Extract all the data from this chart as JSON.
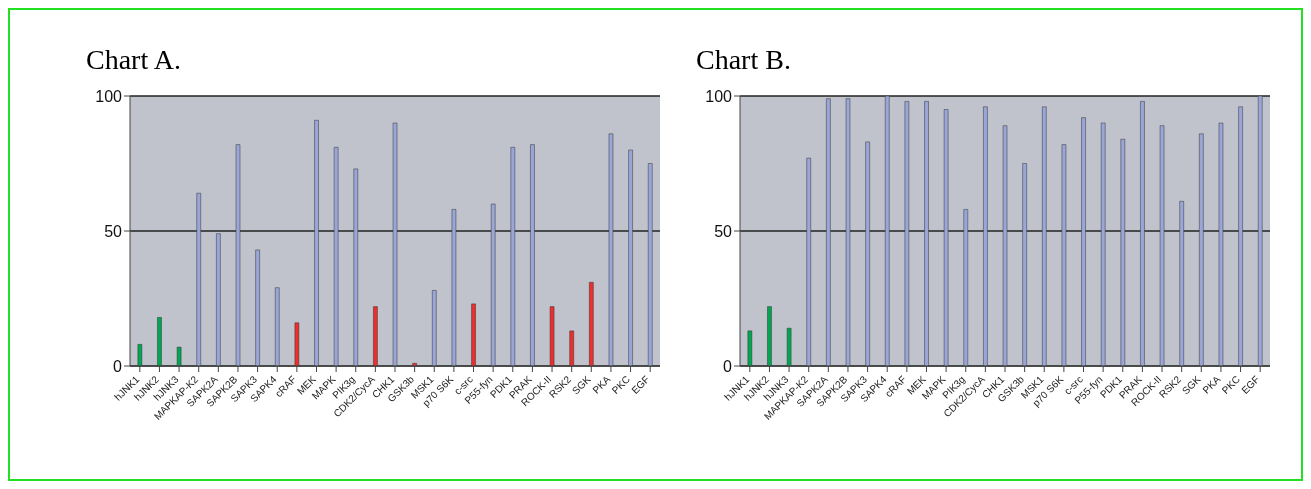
{
  "chart_data": [
    {
      "type": "bar",
      "title": "Chart A.",
      "categories": [
        "hJNK1",
        "hJNK2",
        "hJNK3",
        "MAPKAP-K2",
        "SAPK2A",
        "SAPK2B",
        "SAPK3",
        "SAPK4",
        "cRAF",
        "MEK",
        "MAPK",
        "PIK3g",
        "CDK2/CycA",
        "CHK1",
        "GSK3b",
        "MSK1",
        "p70 S6K",
        "c-src",
        "P55-fyn",
        "PDK1",
        "PRAK",
        "ROCK-II",
        "RSK2",
        "SGK",
        "PKA",
        "PKC",
        "EGF"
      ],
      "values": [
        8,
        18,
        7,
        64,
        49,
        82,
        43,
        29,
        16,
        91,
        81,
        73,
        22,
        90,
        1,
        28,
        58,
        23,
        60,
        81,
        82,
        22,
        13,
        31,
        86,
        80,
        75
      ],
      "colors": [
        "#00a651",
        "#00a651",
        "#00a651",
        "#9ba6d8",
        "#9ba6d8",
        "#9ba6d8",
        "#9ba6d8",
        "#9ba6d8",
        "#ee2d2d",
        "#9ba6d8",
        "#9ba6d8",
        "#9ba6d8",
        "#ee2d2d",
        "#9ba6d8",
        "#ee2d2d",
        "#9ba6d8",
        "#9ba6d8",
        "#ee2d2d",
        "#9ba6d8",
        "#9ba6d8",
        "#9ba6d8",
        "#ee2d2d",
        "#ee2d2d",
        "#ee2d2d",
        "#9ba6d8",
        "#9ba6d8",
        "#9ba6d8"
      ],
      "ylim": [
        0,
        100
      ],
      "yticks": [
        0,
        50,
        100
      ],
      "grid": "y",
      "legend": false
    },
    {
      "type": "bar",
      "title": "Chart B.",
      "categories": [
        "hJNK1",
        "hJNK2",
        "hJNK3",
        "MAPKAP-K2",
        "SAPK2A",
        "SAPK2B",
        "SAPK3",
        "SAPK4",
        "cRAF",
        "MEK",
        "MAPK",
        "PIK3g",
        "CDK2/CycA",
        "CHK1",
        "GSK3b",
        "MSK1",
        "p70 S6K",
        "c-src",
        "P55-fyn",
        "PDK1",
        "PRAK",
        "ROCK-II",
        "RSK2",
        "SGK",
        "PKA",
        "PKC",
        "EGF"
      ],
      "values": [
        13,
        22,
        14,
        77,
        99,
        99,
        83,
        100,
        98,
        98,
        95,
        58,
        96,
        89,
        75,
        96,
        82,
        92,
        90,
        84,
        98,
        89,
        61,
        86,
        90,
        96,
        100
      ],
      "colors": [
        "#00a651",
        "#00a651",
        "#00a651",
        "#9ba6d8",
        "#9ba6d8",
        "#9ba6d8",
        "#9ba6d8",
        "#9ba6d8",
        "#9ba6d8",
        "#9ba6d8",
        "#9ba6d8",
        "#9ba6d8",
        "#9ba6d8",
        "#9ba6d8",
        "#9ba6d8",
        "#9ba6d8",
        "#9ba6d8",
        "#9ba6d8",
        "#9ba6d8",
        "#9ba6d8",
        "#9ba6d8",
        "#9ba6d8",
        "#9ba6d8",
        "#9ba6d8",
        "#9ba6d8",
        "#9ba6d8",
        "#9ba6d8"
      ],
      "ylim": [
        0,
        100
      ],
      "yticks": [
        0,
        50,
        100
      ],
      "grid": "y",
      "legend": false
    }
  ]
}
